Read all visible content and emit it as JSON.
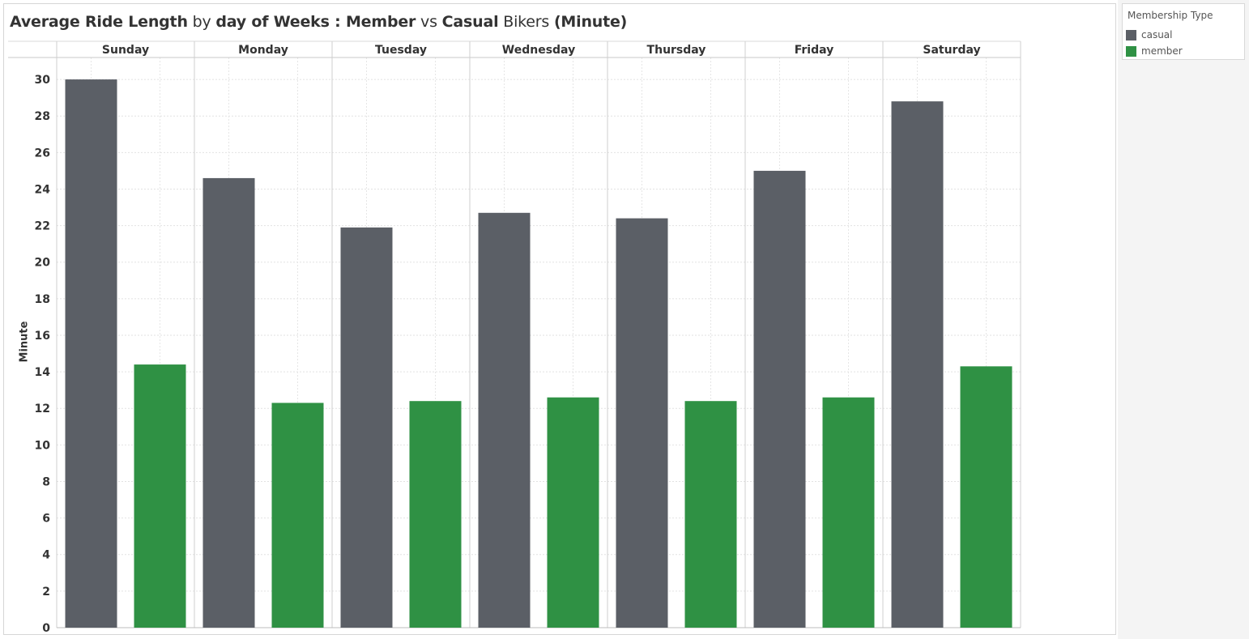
{
  "title_segments": [
    {
      "text": "Average Ride Length",
      "bold": true
    },
    {
      "text": " by ",
      "bold": false
    },
    {
      "text": "day of Weeks : Member",
      "bold": true
    },
    {
      "text": " vs ",
      "bold": false
    },
    {
      "text": "Casual",
      "bold": true
    },
    {
      "text": " Bikers ",
      "bold": false
    },
    {
      "text": "(Minute)",
      "bold": true
    }
  ],
  "legend": {
    "title": "Membership Type",
    "items": [
      {
        "label": "casual",
        "color": "#5b5f66"
      },
      {
        "label": "member",
        "color": "#2f9144"
      }
    ]
  },
  "chart_data": {
    "type": "bar",
    "title": "Average Ride Length by day of Weeks : Member vs Casual Bikers (Minute)",
    "xlabel": "",
    "ylabel": "Minute",
    "categories": [
      "Sunday",
      "Monday",
      "Tuesday",
      "Wednesday",
      "Thursday",
      "Friday",
      "Saturday"
    ],
    "series": [
      {
        "name": "casual",
        "color": "#5b5f66",
        "values": [
          30.0,
          24.6,
          21.9,
          22.7,
          22.4,
          25.0,
          28.8
        ]
      },
      {
        "name": "member",
        "color": "#2f9144",
        "values": [
          14.4,
          12.3,
          12.4,
          12.6,
          12.4,
          12.6,
          14.3
        ]
      }
    ],
    "ylim": [
      0,
      31.2
    ],
    "yticks": [
      0,
      2,
      4,
      6,
      8,
      10,
      12,
      14,
      16,
      18,
      20,
      22,
      24,
      26,
      28,
      30
    ],
    "grid": true,
    "legend_position": "top-right"
  }
}
